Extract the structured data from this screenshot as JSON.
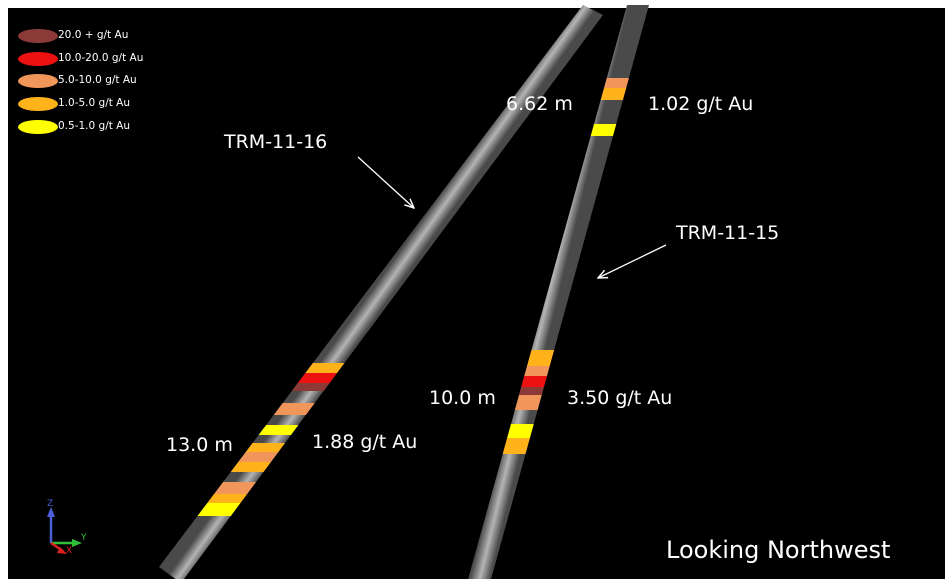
{
  "legend": {
    "items": [
      {
        "label": "20.0 + g/t Au",
        "color": "#8b3a38"
      },
      {
        "label": "10.0-20.0 g/t Au",
        "color": "#ee1111"
      },
      {
        "label": "5.0-10.0 g/t Au",
        "color": "#f0965a"
      },
      {
        "label": "1.0-5.0 g/t Au",
        "color": "#ffb21a"
      },
      {
        "label": "0.5-1.0 g/t Au",
        "color": "#ffff00"
      }
    ]
  },
  "holes": [
    {
      "name": "TRM-11-16",
      "intercepts": [
        {
          "length": "13.0 m",
          "grade": "1.88 g/t Au"
        }
      ]
    },
    {
      "name": "TRM-11-15",
      "intercepts": [
        {
          "length": "6.62 m",
          "grade": "1.02 g/t Au"
        },
        {
          "length": "10.0 m",
          "grade": "3.50 g/t Au"
        }
      ]
    }
  ],
  "view_label": "Looking Northwest",
  "axis_triad": {
    "z": "Z",
    "y": "Y",
    "x": "X"
  },
  "colors": {
    "background": "#000000",
    "frame": "#ffffff",
    "drillhole": "#7a7a7a",
    "text": "#ffffff"
  }
}
